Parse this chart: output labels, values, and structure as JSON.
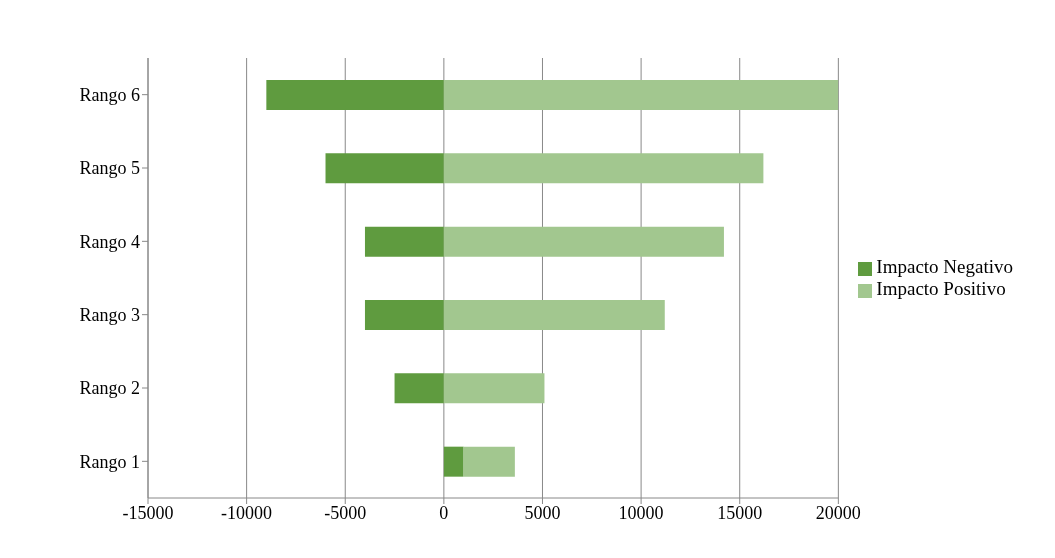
{
  "chart_data": {
    "type": "bar",
    "orientation": "horizontal",
    "stacked": true,
    "categories": [
      "Rango 6",
      "Rango 5",
      "Rango 4",
      "Rango 3",
      "Rango 2",
      "Rango 1"
    ],
    "series": [
      {
        "name": "Impacto Negativo",
        "color": "#5f9b3f",
        "values": [
          -9000,
          -6000,
          -4000,
          -4000,
          -2500,
          1000
        ]
      },
      {
        "name": "Impacto Positivo",
        "color": "#a2c78f",
        "values": [
          20000,
          16200,
          14200,
          11200,
          5100,
          2600
        ]
      }
    ],
    "xlim": [
      -15000,
      20000
    ],
    "xticks": [
      -15000,
      -10000,
      -5000,
      0,
      5000,
      10000,
      15000,
      20000
    ],
    "grid": "x",
    "legend": "right"
  }
}
